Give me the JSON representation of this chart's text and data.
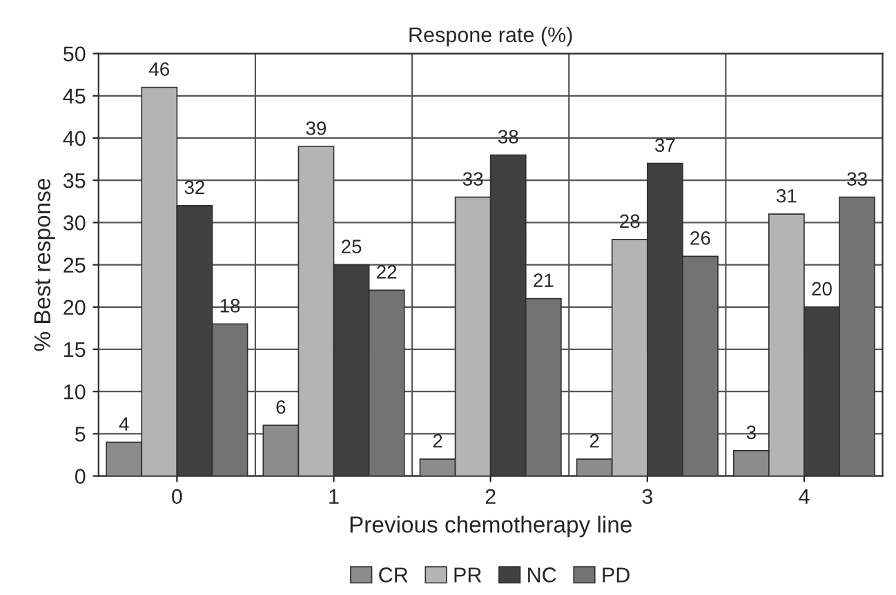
{
  "chart_data": {
    "type": "bar",
    "title": "Respone rate (%)",
    "xlabel": "Previous chemotherapy line",
    "ylabel": "% Best response",
    "categories": [
      "0",
      "1",
      "2",
      "3",
      "4"
    ],
    "series": [
      {
        "name": "CR",
        "color": "#8c8c8c",
        "values": [
          4,
          6,
          2,
          2,
          3
        ]
      },
      {
        "name": "PR",
        "color": "#b4b4b4",
        "values": [
          46,
          39,
          33,
          28,
          31
        ]
      },
      {
        "name": "NC",
        "color": "#404040",
        "values": [
          32,
          25,
          38,
          37,
          20
        ]
      },
      {
        "name": "PD",
        "color": "#737373",
        "values": [
          18,
          22,
          21,
          26,
          33
        ]
      }
    ],
    "ylim": [
      0,
      50
    ],
    "yticks": [
      0,
      5,
      10,
      15,
      20,
      25,
      30,
      35,
      40,
      45,
      50
    ],
    "grid": true,
    "legend": "bottom",
    "data_labels": true
  }
}
